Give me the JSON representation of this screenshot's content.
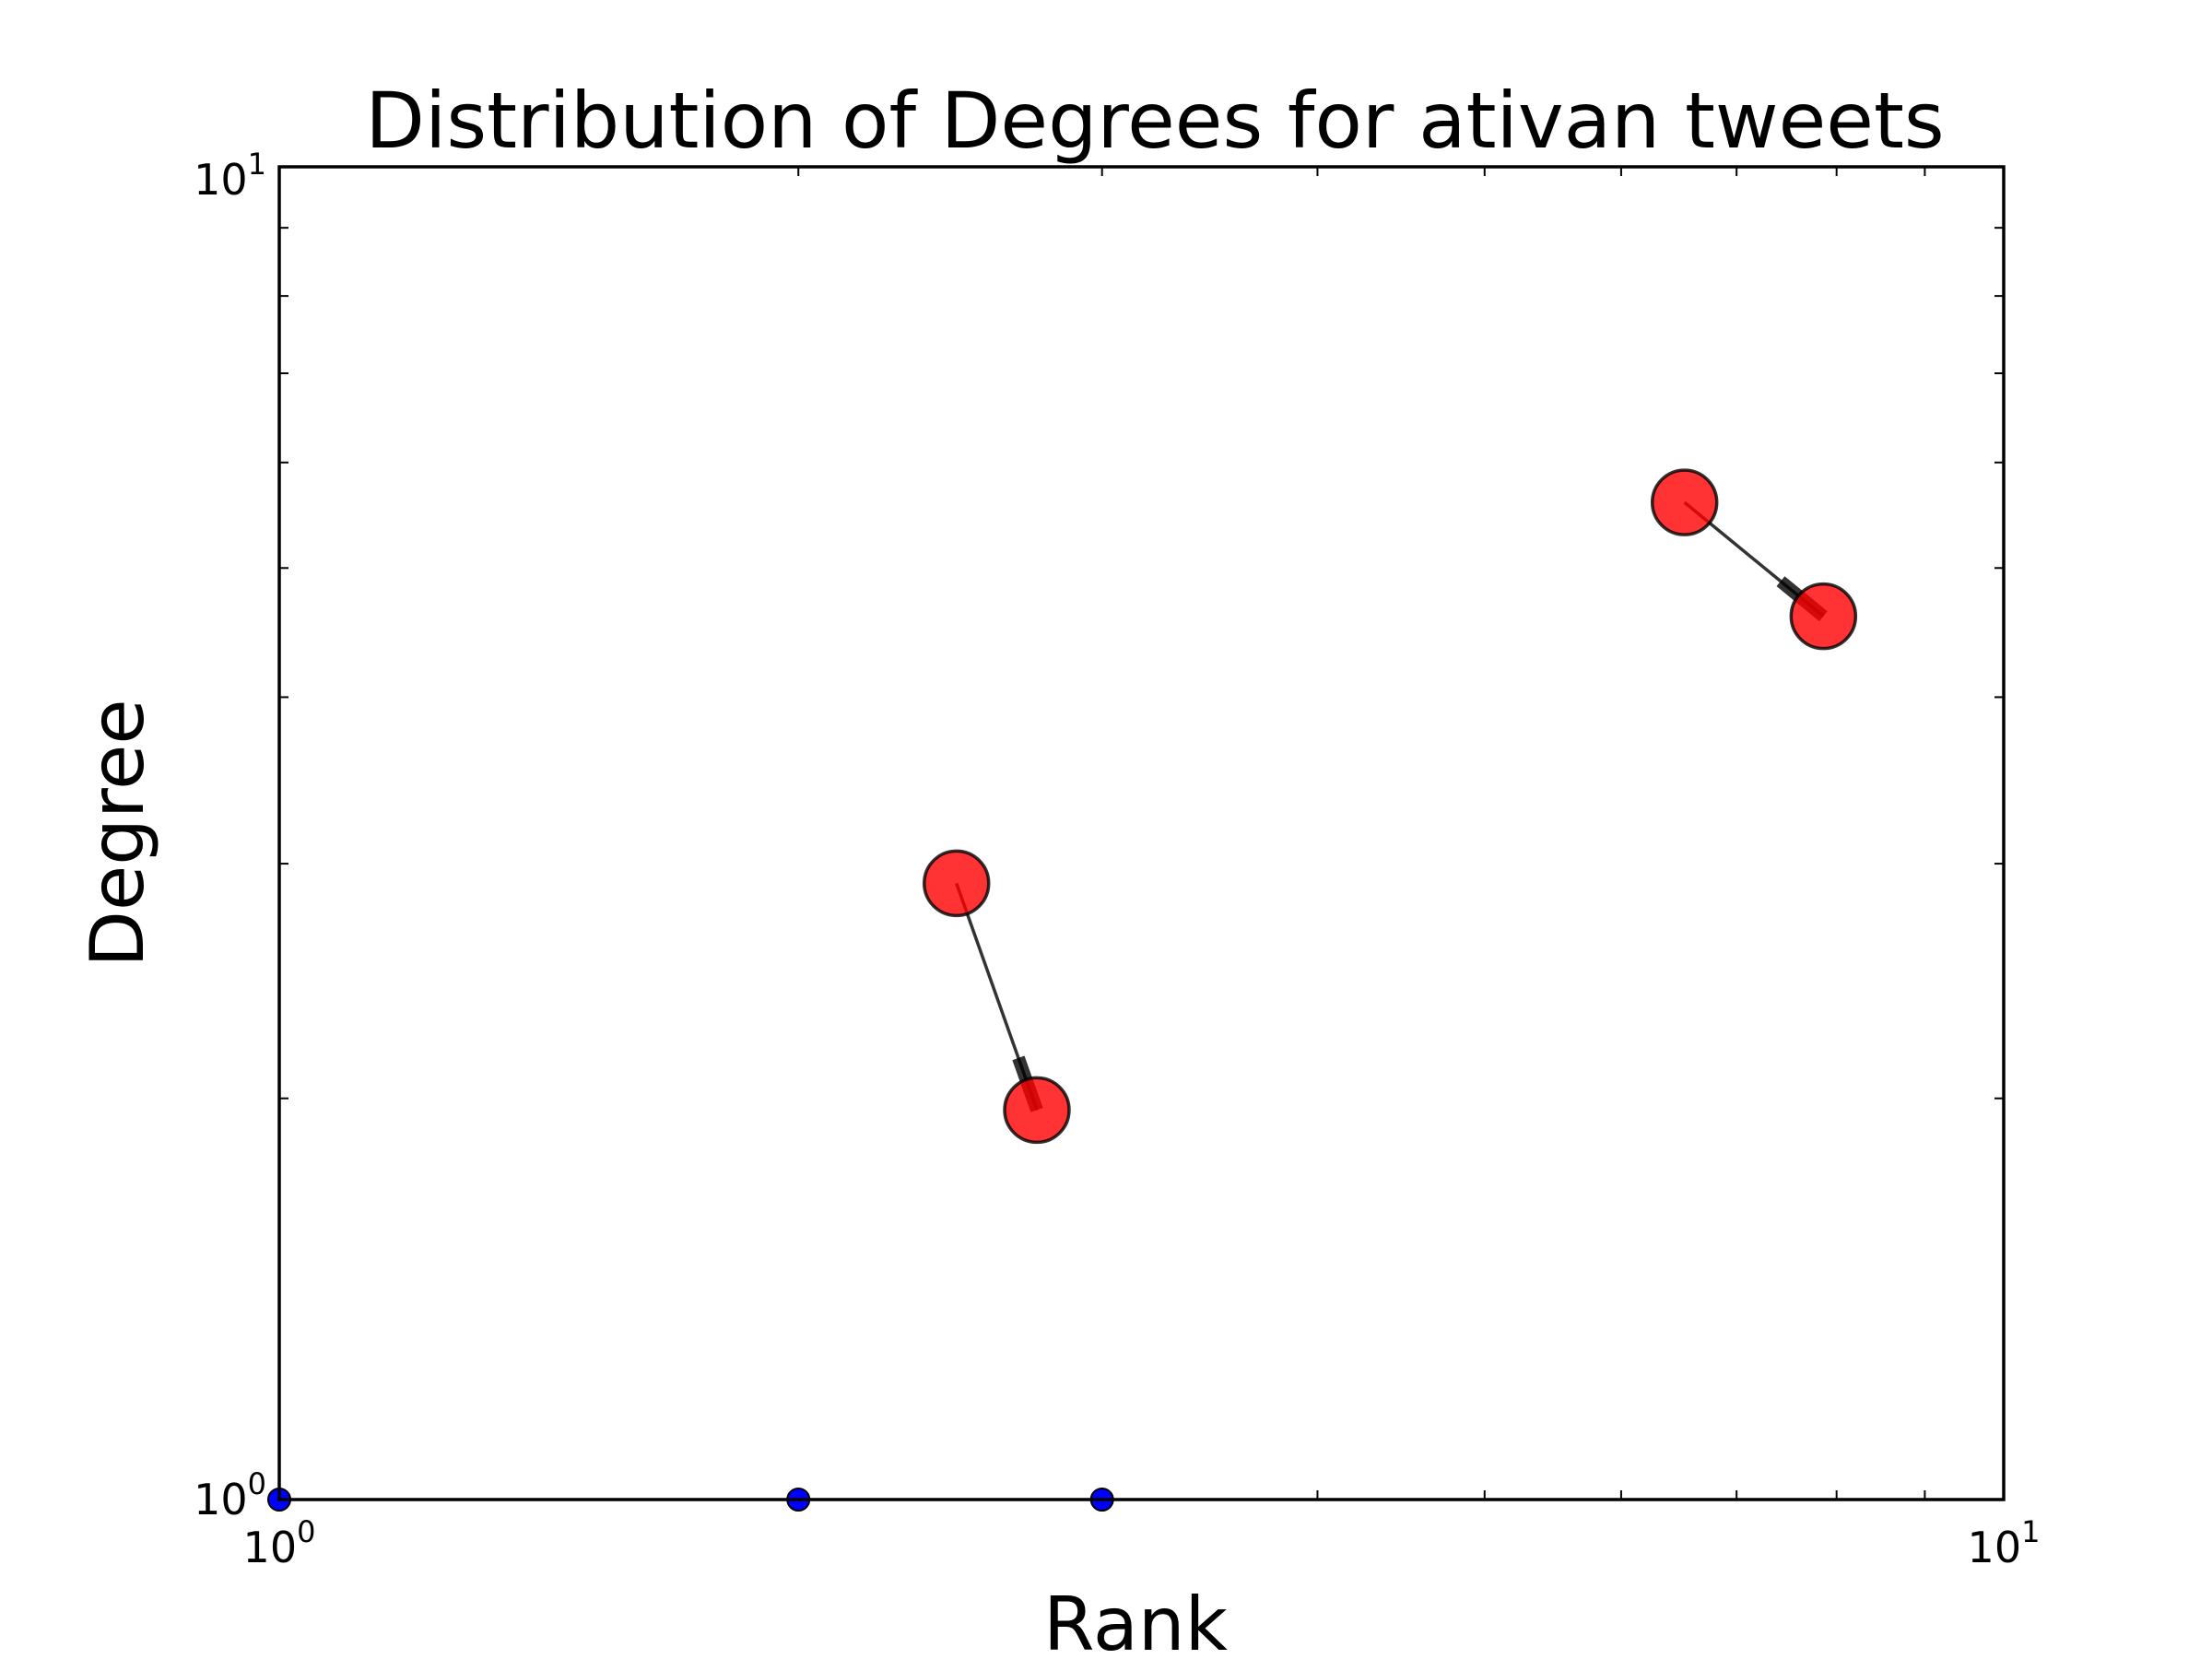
{
  "chart_data": {
    "type": "scatter",
    "title": "Distribution of Degrees for ativan tweets",
    "xlabel": "Rank",
    "ylabel": "Degree",
    "xscale": "log",
    "yscale": "log",
    "xlim": [
      1,
      10
    ],
    "ylim": [
      1,
      10
    ],
    "grid": false,
    "legend": "none",
    "x_tick_labels": [
      {
        "base": "10",
        "exp": "0"
      },
      {
        "base": "10",
        "exp": "1"
      }
    ],
    "y_tick_labels": [
      {
        "base": "10",
        "exp": "0"
      },
      {
        "base": "10",
        "exp": "1"
      }
    ],
    "nodes": [
      {
        "x": 2.47,
        "y": 2.9
      },
      {
        "x": 2.75,
        "y": 1.96
      },
      {
        "x": 6.53,
        "y": 5.6
      },
      {
        "x": 7.86,
        "y": 4.6
      }
    ],
    "edges": [
      {
        "from": 0,
        "to": 1
      },
      {
        "from": 2,
        "to": 3
      }
    ],
    "points": [
      {
        "x": 1.0,
        "y": 1.0
      },
      {
        "x": 2.0,
        "y": 1.0
      },
      {
        "x": 3.0,
        "y": 1.0
      }
    ],
    "colors": {
      "node": "#ff0000",
      "edge": "#000000",
      "point": "#0000ff"
    }
  }
}
